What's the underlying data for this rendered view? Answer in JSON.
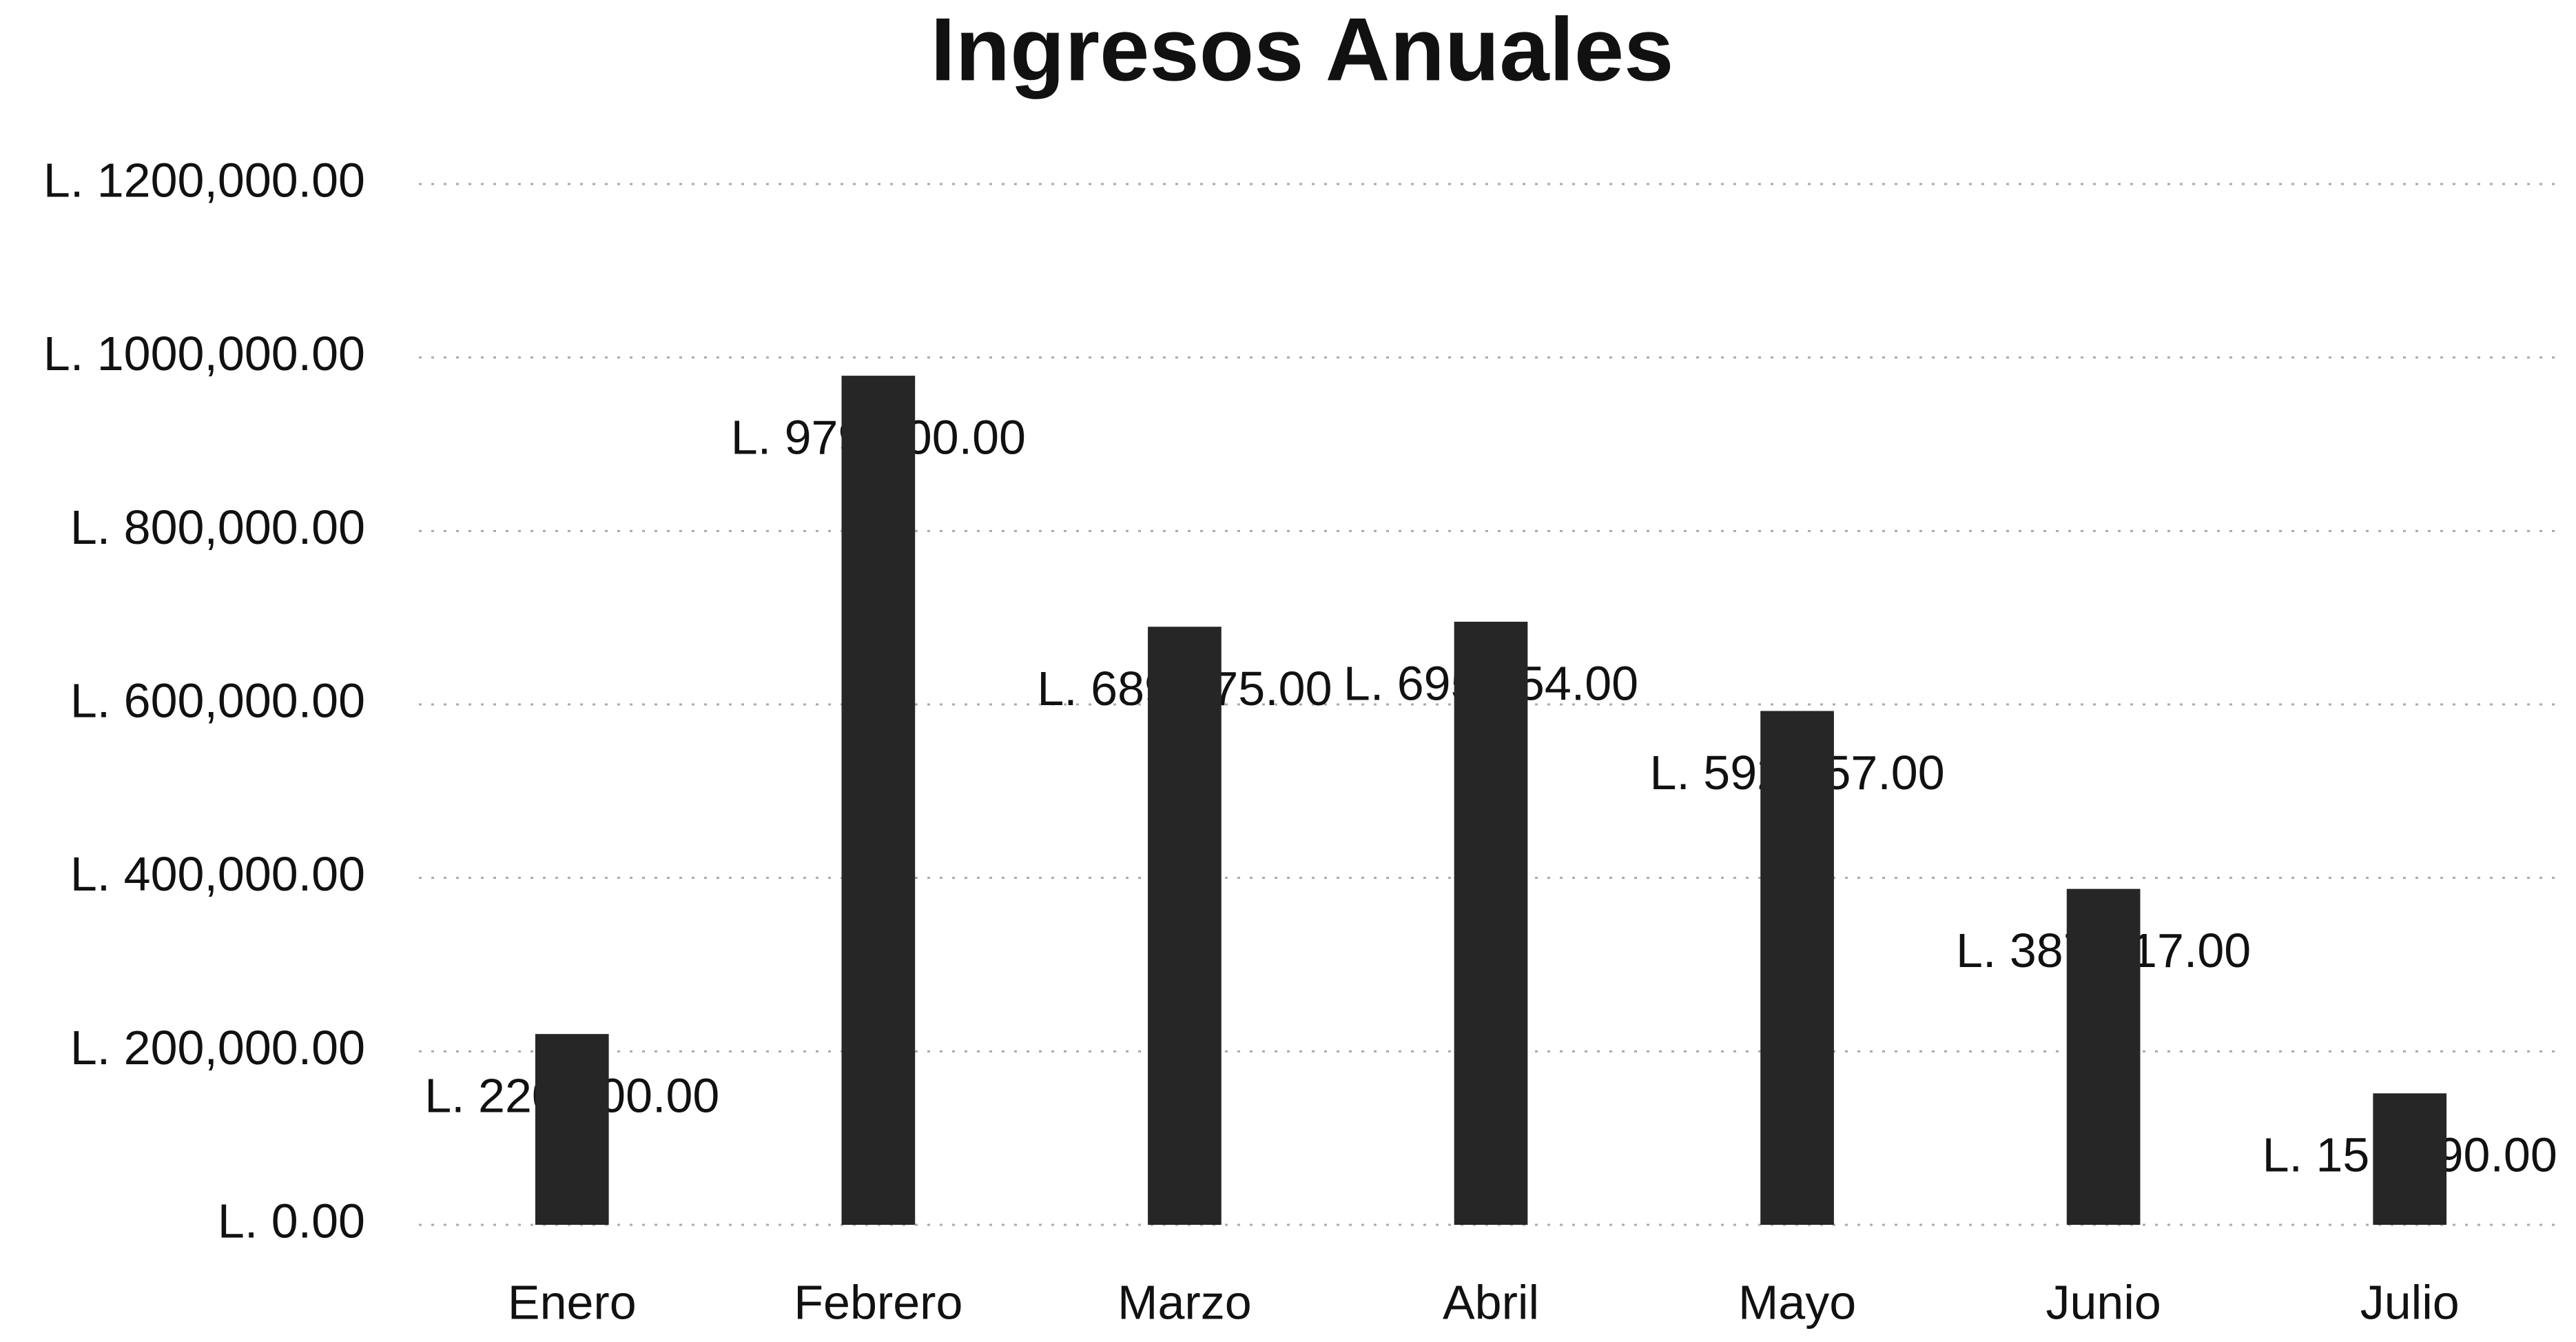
{
  "chart_data": {
    "type": "bar",
    "title": "Ingresos Anuales",
    "categories": [
      "Enero",
      "Febrero",
      "Marzo",
      "Abril",
      "Mayo",
      "Junio",
      "Julio"
    ],
    "values": [
      220000,
      979000,
      689575,
      695354,
      592457,
      387317,
      151590
    ],
    "value_labels": [
      "L. 220,000.00",
      "L. 979,000.00",
      "L. 689,575.00",
      "L. 695,354.00",
      "L. 592,457.00",
      "L. 387,317.00",
      "L. 151,590.00"
    ],
    "color": "#262626",
    "ylim": [
      0,
      1200000
    ],
    "yticks": [
      {
        "value": 0,
        "label": "L. 0.00"
      },
      {
        "value": 200000,
        "label": "L. 200,000.00"
      },
      {
        "value": 400000,
        "label": "L. 400,000.00"
      },
      {
        "value": 600000,
        "label": "L. 600,000.00"
      },
      {
        "value": 800000,
        "label": "L. 800,000.00"
      },
      {
        "value": 1000000,
        "label": "L. 1000,000.00"
      },
      {
        "value": 1200000,
        "label": "L. 1200,000.00"
      }
    ],
    "grid": true
  }
}
